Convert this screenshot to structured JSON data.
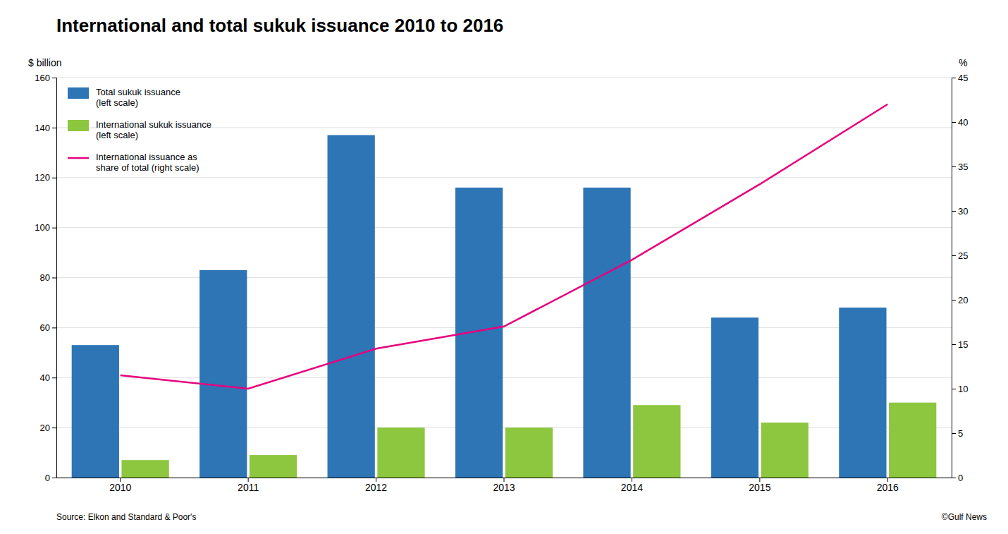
{
  "chart_data": {
    "type": "bar",
    "title": "International and total sukuk issuance 2010 to 2016",
    "ylabel": "$ billion",
    "y2label": "%",
    "annotations": [
      "Source: Elkon and Standard & Poor's",
      "©Gulf News"
    ],
    "categories": [
      "2010",
      "2011",
      "2012",
      "2013",
      "2014",
      "2015",
      "2016"
    ],
    "series": [
      {
        "name": "Total sukuk issuance\n(left scale)",
        "color": "#2E75B6",
        "values": [
          53,
          83,
          137,
          116,
          116,
          64,
          68
        ]
      },
      {
        "name": "International sukuk issuance\n(left scale)",
        "color": "#8DC63F",
        "values": [
          7,
          9,
          20,
          20,
          29,
          22,
          30
        ]
      },
      {
        "name": "International issuance as\nshare of total (right scale)",
        "type": "line",
        "axis": "y2",
        "color": "#E8007D",
        "values": [
          11.5,
          10.0,
          14.5,
          17.0,
          24.5,
          33.0,
          42.0
        ]
      }
    ],
    "ylim": [
      0,
      160
    ],
    "yticks": [
      0,
      20,
      40,
      60,
      80,
      100,
      120,
      140,
      160
    ],
    "y2lim": [
      0,
      45
    ],
    "y2ticks": [
      0,
      5,
      10,
      15,
      20,
      25,
      30,
      35,
      40,
      45
    ],
    "grid": true,
    "legend": "upper left"
  }
}
